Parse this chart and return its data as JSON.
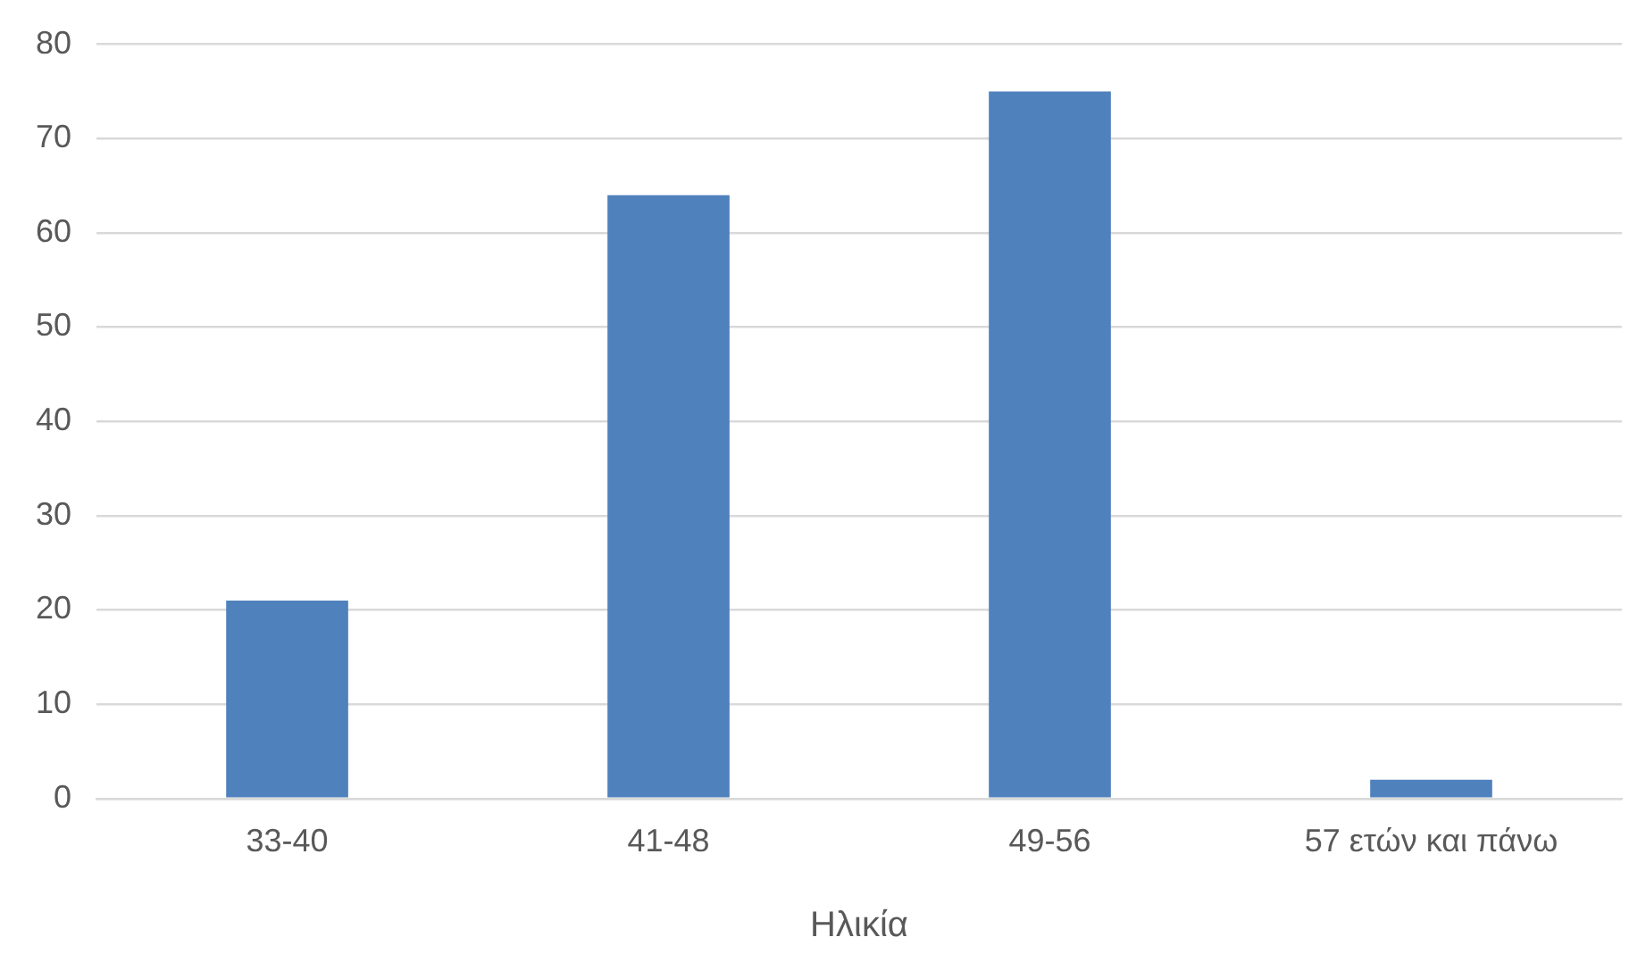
{
  "chart_data": {
    "type": "bar",
    "xlabel": "Ηλικία",
    "categories": [
      "33-40",
      "41-48",
      "49-56",
      "57 ετών και πάνω"
    ],
    "values": [
      21,
      64,
      75,
      2
    ],
    "color": "#4f81bd",
    "ylim": [
      0,
      80
    ],
    "yticks": [
      0,
      10,
      20,
      30,
      40,
      50,
      60,
      70,
      80
    ],
    "grid": "y",
    "legend": false
  }
}
